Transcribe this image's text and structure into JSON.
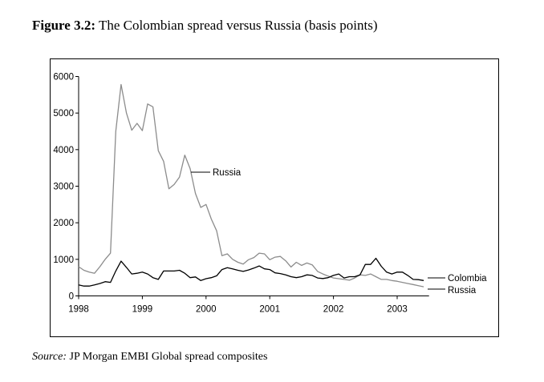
{
  "figure": {
    "label": "Figure 3.2:",
    "caption": "The Colombian spread versus Russia (basis points)",
    "source_label": "Source:",
    "source_text": "JP Morgan EMBI Global spread composites"
  },
  "chart_data": {
    "type": "line",
    "title": "The Colombian spread versus Russia (basis points)",
    "xlabel": "",
    "ylabel": "basis points",
    "x_start": 1998.0,
    "x_step_months": 1,
    "xlim": [
      1998,
      2003.5
    ],
    "ylim": [
      0,
      6000
    ],
    "x_ticks": [
      "1998",
      "1999",
      "2000",
      "2001",
      "2002",
      "2003"
    ],
    "y_ticks": [
      "0",
      "1000",
      "2000",
      "3000",
      "4000",
      "5000",
      "6000"
    ],
    "grid": false,
    "series": [
      {
        "name": "Colombia",
        "color": "#000000",
        "values": [
          300,
          270,
          270,
          300,
          340,
          390,
          370,
          680,
          950,
          780,
          600,
          620,
          650,
          600,
          500,
          450,
          680,
          680,
          680,
          700,
          620,
          500,
          520,
          420,
          470,
          500,
          550,
          720,
          770,
          740,
          700,
          670,
          710,
          760,
          820,
          740,
          720,
          630,
          610,
          575,
          525,
          500,
          525,
          575,
          560,
          490,
          475,
          500,
          560,
          600,
          490,
          525,
          525,
          575,
          860,
          860,
          1030,
          810,
          650,
          600,
          650,
          650,
          560,
          450,
          445,
          420
        ]
      },
      {
        "name": "Russia",
        "color": "#8c8c8c",
        "values": [
          800,
          700,
          650,
          620,
          800,
          1000,
          1170,
          4500,
          5780,
          5000,
          4530,
          4720,
          4520,
          5250,
          5170,
          3970,
          3680,
          2930,
          3050,
          3250,
          3850,
          3480,
          2800,
          2420,
          2500,
          2100,
          1780,
          1100,
          1150,
          1000,
          920,
          870,
          990,
          1050,
          1170,
          1150,
          990,
          1060,
          1080,
          960,
          790,
          920,
          835,
          900,
          850,
          670,
          600,
          540,
          490,
          470,
          450,
          430,
          490,
          575,
          560,
          600,
          525,
          450,
          450,
          420,
          400,
          370,
          340,
          310,
          280,
          250
        ]
      }
    ],
    "annotations": [
      {
        "text": "Russia",
        "series": "Russia"
      }
    ],
    "legend": {
      "placement": "right",
      "entries": [
        "Colombia",
        "Russia"
      ]
    }
  }
}
